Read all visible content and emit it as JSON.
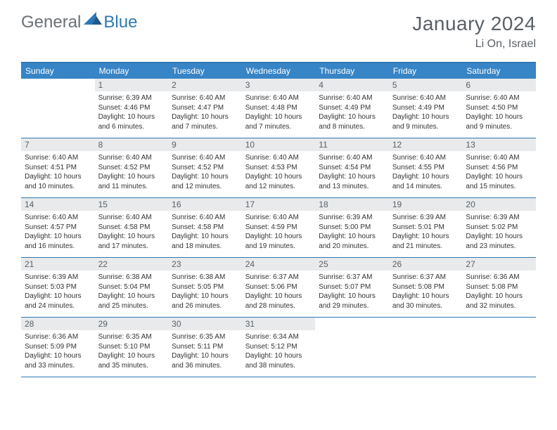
{
  "logo": {
    "general": "General",
    "blue": "Blue"
  },
  "title": "January 2024",
  "location": "Li On, Israel",
  "colors": {
    "header_bg": "#3784c6",
    "accent_rule": "#2f78b5",
    "daynum_bg": "#e8eaec",
    "text_muted": "#5a6067",
    "body_text": "#333333",
    "page_bg": "#ffffff"
  },
  "day_headers": [
    "Sunday",
    "Monday",
    "Tuesday",
    "Wednesday",
    "Thursday",
    "Friday",
    "Saturday"
  ],
  "weeks": [
    [
      {
        "n": "",
        "sr": "",
        "ss": "",
        "d1": "",
        "d2": ""
      },
      {
        "n": "1",
        "sr": "Sunrise: 6:39 AM",
        "ss": "Sunset: 4:46 PM",
        "d1": "Daylight: 10 hours",
        "d2": "and 6 minutes."
      },
      {
        "n": "2",
        "sr": "Sunrise: 6:40 AM",
        "ss": "Sunset: 4:47 PM",
        "d1": "Daylight: 10 hours",
        "d2": "and 7 minutes."
      },
      {
        "n": "3",
        "sr": "Sunrise: 6:40 AM",
        "ss": "Sunset: 4:48 PM",
        "d1": "Daylight: 10 hours",
        "d2": "and 7 minutes."
      },
      {
        "n": "4",
        "sr": "Sunrise: 6:40 AM",
        "ss": "Sunset: 4:49 PM",
        "d1": "Daylight: 10 hours",
        "d2": "and 8 minutes."
      },
      {
        "n": "5",
        "sr": "Sunrise: 6:40 AM",
        "ss": "Sunset: 4:49 PM",
        "d1": "Daylight: 10 hours",
        "d2": "and 9 minutes."
      },
      {
        "n": "6",
        "sr": "Sunrise: 6:40 AM",
        "ss": "Sunset: 4:50 PM",
        "d1": "Daylight: 10 hours",
        "d2": "and 9 minutes."
      }
    ],
    [
      {
        "n": "7",
        "sr": "Sunrise: 6:40 AM",
        "ss": "Sunset: 4:51 PM",
        "d1": "Daylight: 10 hours",
        "d2": "and 10 minutes."
      },
      {
        "n": "8",
        "sr": "Sunrise: 6:40 AM",
        "ss": "Sunset: 4:52 PM",
        "d1": "Daylight: 10 hours",
        "d2": "and 11 minutes."
      },
      {
        "n": "9",
        "sr": "Sunrise: 6:40 AM",
        "ss": "Sunset: 4:52 PM",
        "d1": "Daylight: 10 hours",
        "d2": "and 12 minutes."
      },
      {
        "n": "10",
        "sr": "Sunrise: 6:40 AM",
        "ss": "Sunset: 4:53 PM",
        "d1": "Daylight: 10 hours",
        "d2": "and 12 minutes."
      },
      {
        "n": "11",
        "sr": "Sunrise: 6:40 AM",
        "ss": "Sunset: 4:54 PM",
        "d1": "Daylight: 10 hours",
        "d2": "and 13 minutes."
      },
      {
        "n": "12",
        "sr": "Sunrise: 6:40 AM",
        "ss": "Sunset: 4:55 PM",
        "d1": "Daylight: 10 hours",
        "d2": "and 14 minutes."
      },
      {
        "n": "13",
        "sr": "Sunrise: 6:40 AM",
        "ss": "Sunset: 4:56 PM",
        "d1": "Daylight: 10 hours",
        "d2": "and 15 minutes."
      }
    ],
    [
      {
        "n": "14",
        "sr": "Sunrise: 6:40 AM",
        "ss": "Sunset: 4:57 PM",
        "d1": "Daylight: 10 hours",
        "d2": "and 16 minutes."
      },
      {
        "n": "15",
        "sr": "Sunrise: 6:40 AM",
        "ss": "Sunset: 4:58 PM",
        "d1": "Daylight: 10 hours",
        "d2": "and 17 minutes."
      },
      {
        "n": "16",
        "sr": "Sunrise: 6:40 AM",
        "ss": "Sunset: 4:58 PM",
        "d1": "Daylight: 10 hours",
        "d2": "and 18 minutes."
      },
      {
        "n": "17",
        "sr": "Sunrise: 6:40 AM",
        "ss": "Sunset: 4:59 PM",
        "d1": "Daylight: 10 hours",
        "d2": "and 19 minutes."
      },
      {
        "n": "18",
        "sr": "Sunrise: 6:39 AM",
        "ss": "Sunset: 5:00 PM",
        "d1": "Daylight: 10 hours",
        "d2": "and 20 minutes."
      },
      {
        "n": "19",
        "sr": "Sunrise: 6:39 AM",
        "ss": "Sunset: 5:01 PM",
        "d1": "Daylight: 10 hours",
        "d2": "and 21 minutes."
      },
      {
        "n": "20",
        "sr": "Sunrise: 6:39 AM",
        "ss": "Sunset: 5:02 PM",
        "d1": "Daylight: 10 hours",
        "d2": "and 23 minutes."
      }
    ],
    [
      {
        "n": "21",
        "sr": "Sunrise: 6:39 AM",
        "ss": "Sunset: 5:03 PM",
        "d1": "Daylight: 10 hours",
        "d2": "and 24 minutes."
      },
      {
        "n": "22",
        "sr": "Sunrise: 6:38 AM",
        "ss": "Sunset: 5:04 PM",
        "d1": "Daylight: 10 hours",
        "d2": "and 25 minutes."
      },
      {
        "n": "23",
        "sr": "Sunrise: 6:38 AM",
        "ss": "Sunset: 5:05 PM",
        "d1": "Daylight: 10 hours",
        "d2": "and 26 minutes."
      },
      {
        "n": "24",
        "sr": "Sunrise: 6:37 AM",
        "ss": "Sunset: 5:06 PM",
        "d1": "Daylight: 10 hours",
        "d2": "and 28 minutes."
      },
      {
        "n": "25",
        "sr": "Sunrise: 6:37 AM",
        "ss": "Sunset: 5:07 PM",
        "d1": "Daylight: 10 hours",
        "d2": "and 29 minutes."
      },
      {
        "n": "26",
        "sr": "Sunrise: 6:37 AM",
        "ss": "Sunset: 5:08 PM",
        "d1": "Daylight: 10 hours",
        "d2": "and 30 minutes."
      },
      {
        "n": "27",
        "sr": "Sunrise: 6:36 AM",
        "ss": "Sunset: 5:08 PM",
        "d1": "Daylight: 10 hours",
        "d2": "and 32 minutes."
      }
    ],
    [
      {
        "n": "28",
        "sr": "Sunrise: 6:36 AM",
        "ss": "Sunset: 5:09 PM",
        "d1": "Daylight: 10 hours",
        "d2": "and 33 minutes."
      },
      {
        "n": "29",
        "sr": "Sunrise: 6:35 AM",
        "ss": "Sunset: 5:10 PM",
        "d1": "Daylight: 10 hours",
        "d2": "and 35 minutes."
      },
      {
        "n": "30",
        "sr": "Sunrise: 6:35 AM",
        "ss": "Sunset: 5:11 PM",
        "d1": "Daylight: 10 hours",
        "d2": "and 36 minutes."
      },
      {
        "n": "31",
        "sr": "Sunrise: 6:34 AM",
        "ss": "Sunset: 5:12 PM",
        "d1": "Daylight: 10 hours",
        "d2": "and 38 minutes."
      },
      {
        "n": "",
        "sr": "",
        "ss": "",
        "d1": "",
        "d2": ""
      },
      {
        "n": "",
        "sr": "",
        "ss": "",
        "d1": "",
        "d2": ""
      },
      {
        "n": "",
        "sr": "",
        "ss": "",
        "d1": "",
        "d2": ""
      }
    ]
  ]
}
